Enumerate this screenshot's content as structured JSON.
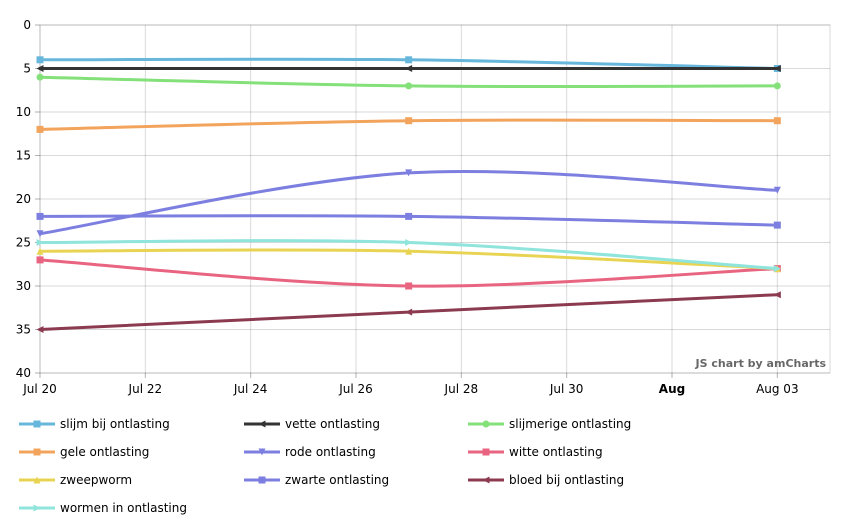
{
  "chart_data": {
    "type": "line",
    "watermark": "JS chart by amCharts",
    "y_axis": {
      "reversed": true,
      "min": 0,
      "max": 40,
      "ticks": [
        "0",
        "5",
        "10",
        "15",
        "20",
        "25",
        "30",
        "35",
        "40"
      ]
    },
    "x_axis": {
      "min": "2011-07-20",
      "max": "2011-08-04",
      "ticks": [
        {
          "date": "2011-07-20",
          "label": "Jul 20",
          "bold": false
        },
        {
          "date": "2011-07-22",
          "label": "Jul 22",
          "bold": false
        },
        {
          "date": "2011-07-24",
          "label": "Jul 24",
          "bold": false
        },
        {
          "date": "2011-07-26",
          "label": "Jul 26",
          "bold": false
        },
        {
          "date": "2011-07-28",
          "label": "Jul 28",
          "bold": false
        },
        {
          "date": "2011-07-30",
          "label": "Jul 30",
          "bold": false
        },
        {
          "date": "2011-08-01",
          "label": "Aug",
          "bold": true
        },
        {
          "date": "2011-08-03",
          "label": "Aug 03",
          "bold": false
        }
      ]
    },
    "x": [
      "2011-07-20",
      "2011-07-27",
      "2011-08-03"
    ],
    "series": [
      {
        "name": "slijm bij ontlasting",
        "color": "#67b7dc",
        "marker": "square",
        "values": [
          4,
          4,
          5
        ]
      },
      {
        "name": "vette ontlasting",
        "color": "#333333",
        "marker": "triangle-left",
        "values": [
          5,
          5,
          5
        ]
      },
      {
        "name": "slijmerige ontlasting",
        "color": "#84e079",
        "marker": "circle",
        "values": [
          6,
          7,
          7
        ]
      },
      {
        "name": "gele ontlasting",
        "color": "#f3a45c",
        "marker": "square",
        "values": [
          12,
          11,
          11
        ]
      },
      {
        "name": "rode ontlasting",
        "color": "#7d7fe0",
        "marker": "triangle-down",
        "values": [
          24,
          17,
          19
        ]
      },
      {
        "name": "witte ontlasting",
        "color": "#e86480",
        "marker": "square",
        "values": [
          27,
          30,
          28
        ]
      },
      {
        "name": "zweepworm",
        "color": "#e8d452",
        "marker": "triangle-up",
        "values": [
          26,
          26,
          28
        ]
      },
      {
        "name": "zwarte ontlasting",
        "color": "#7d7fe0",
        "marker": "square",
        "values": [
          22,
          22,
          23
        ]
      },
      {
        "name": "bloed bij ontlasting",
        "color": "#8b3a50",
        "marker": "triangle-left",
        "values": [
          35,
          33,
          31
        ]
      },
      {
        "name": "wormen in ontlasting",
        "color": "#8fe4dc",
        "marker": "triangle-right",
        "values": [
          25,
          25,
          28
        ]
      }
    ],
    "grid": true,
    "legend_position": "bottom"
  }
}
